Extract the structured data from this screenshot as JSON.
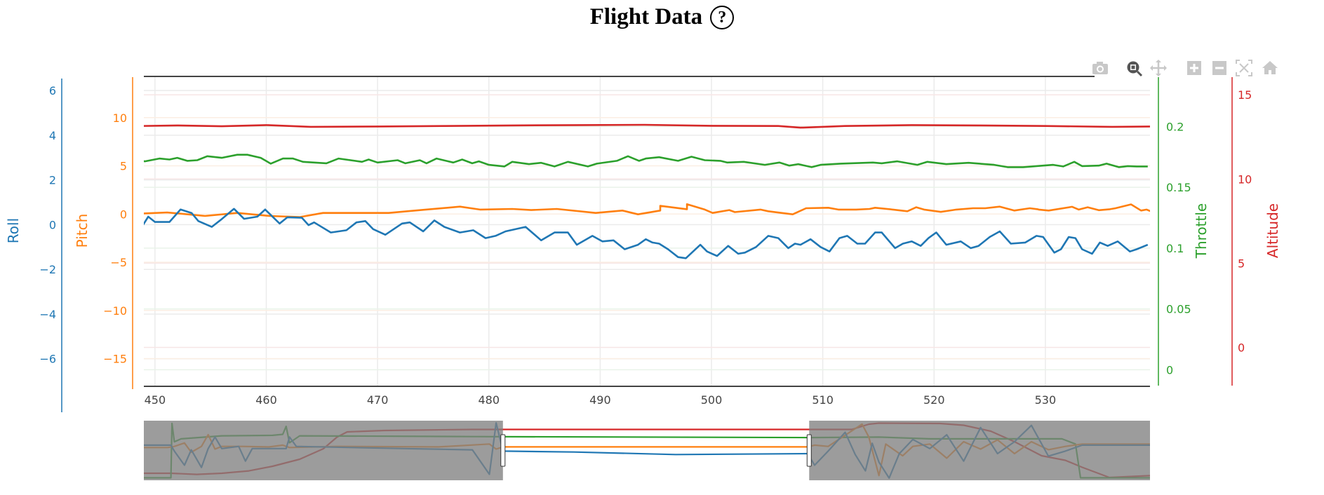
{
  "header": {
    "title": "Flight Data",
    "help_icon": "?"
  },
  "modebar": {
    "icons": [
      "camera-icon",
      "zoom-icon",
      "pan-icon",
      "zoom-in-icon",
      "zoom-out-icon",
      "autoscale-icon",
      "home-icon"
    ],
    "active": "zoom-icon"
  },
  "chart_data": {
    "type": "line",
    "title": "Flight Data",
    "grid": true,
    "xaxis": {
      "range": [
        449.0,
        539.4
      ],
      "ticks": [
        450,
        460,
        470,
        480,
        490,
        500,
        510,
        520,
        530
      ],
      "label": ""
    },
    "yaxes": {
      "roll": {
        "label": "Roll",
        "color": "#1f77b4",
        "range": [
          -7.2,
          6.6
        ],
        "ticks": [
          6,
          4,
          2,
          0,
          -2,
          -4,
          -6
        ],
        "tick_labels": [
          "6",
          "4",
          "2",
          "0",
          "−2",
          "−4",
          "−6"
        ]
      },
      "pitch": {
        "label": "Pitch",
        "color": "#ff7f0e",
        "range": [
          -17.8,
          14.2
        ],
        "ticks": [
          10,
          5,
          0,
          -5,
          -10,
          -15
        ],
        "tick_labels": [
          "10",
          "5",
          "0",
          "−5",
          "−10",
          "−15"
        ]
      },
      "throttle": {
        "label": "Throttle",
        "color": "#2ca02c",
        "range": [
          -0.013,
          0.2405
        ],
        "ticks": [
          0.2,
          0.15,
          0.1,
          0.05,
          0
        ],
        "tick_labels": [
          "0.2",
          "0.15",
          "0.1",
          "0.05",
          "0"
        ]
      },
      "altitude": {
        "label": "Altitude",
        "color": "#d62728",
        "range": [
          -2.27,
          16.05
        ],
        "ticks": [
          15,
          10,
          5,
          0
        ],
        "tick_labels": [
          "15",
          "10",
          "5",
          "0"
        ]
      }
    },
    "series": [
      {
        "name": "Roll",
        "axis": "roll",
        "color": "#1f77b4",
        "x": [
          448.7,
          449.4,
          450.0,
          451.3,
          452.3,
          453.3,
          453.9,
          455.1,
          455.9,
          457.1,
          458.0,
          459.2,
          459.9,
          461.2,
          461.9,
          463.2,
          463.8,
          464.3,
          465.8,
          467.2,
          468.1,
          468.9,
          469.6,
          470.7,
          472.2,
          472.9,
          474.1,
          475.1,
          476.0,
          477.4,
          478.6,
          479.7,
          480.6,
          481.5,
          483.3,
          484.7,
          485.9,
          487.1,
          487.9,
          489.3,
          490.2,
          491.2,
          492.2,
          493.4,
          494.1,
          494.7,
          495.3,
          496.1,
          497.0,
          497.7,
          499.0,
          499.6,
          500.5,
          501.5,
          502.4,
          503.0,
          504.0,
          505.1,
          506.0,
          506.9,
          507.5,
          508.0,
          508.9,
          509.8,
          510.6,
          511.5,
          512.2,
          513.1,
          513.8,
          514.7,
          515.3,
          516.5,
          517.2,
          518.0,
          518.8,
          519.5,
          520.2,
          521.1,
          522.4,
          523.3,
          524.0,
          525.0,
          525.9,
          526.9,
          528.2,
          529.2,
          529.8,
          530.8,
          531.4,
          532.1,
          532.7,
          533.3,
          534.2,
          534.9,
          535.6,
          536.5,
          537.6,
          538.2,
          539.2
        ],
        "y": [
          -0.2,
          0.36,
          0.12,
          0.12,
          0.68,
          0.52,
          0.16,
          -0.1,
          0.21,
          0.71,
          0.26,
          0.36,
          0.68,
          0.05,
          0.33,
          0.31,
          -0.02,
          0.1,
          -0.35,
          -0.25,
          0.1,
          0.16,
          -0.2,
          -0.45,
          0.05,
          0.1,
          -0.3,
          0.19,
          -0.1,
          -0.35,
          -0.25,
          -0.6,
          -0.5,
          -0.3,
          -0.1,
          -0.7,
          -0.35,
          -0.35,
          -0.9,
          -0.5,
          -0.75,
          -0.7,
          -1.1,
          -0.9,
          -0.65,
          -0.8,
          -0.85,
          -1.1,
          -1.45,
          -1.5,
          -0.9,
          -1.2,
          -1.4,
          -0.95,
          -1.3,
          -1.25,
          -1.0,
          -0.5,
          -0.6,
          -1.05,
          -0.85,
          -0.9,
          -0.65,
          -1.0,
          -1.2,
          -0.6,
          -0.5,
          -0.85,
          -0.85,
          -0.35,
          -0.35,
          -1.05,
          -0.85,
          -0.75,
          -0.95,
          -0.6,
          -0.35,
          -0.9,
          -0.75,
          -1.05,
          -0.95,
          -0.55,
          -0.3,
          -0.85,
          -0.8,
          -0.5,
          -0.55,
          -1.25,
          -1.1,
          -0.55,
          -0.6,
          -1.1,
          -1.3,
          -0.8,
          -0.95,
          -0.75,
          -1.2,
          -1.1,
          -0.9
        ]
      },
      {
        "name": "Pitch",
        "axis": "pitch",
        "color": "#ff7f0e",
        "x": [
          448.7,
          451.1,
          454.5,
          457.4,
          460.3,
          463.0,
          465.1,
          471.0,
          473.9,
          477.4,
          479.2,
          482.1,
          483.8,
          486.1,
          489.6,
          492.0,
          493.4,
          495.4,
          497.8,
          500.1,
          502.1,
          504.4,
          508.5,
          514.2,
          516.3,
          518.4,
          521.7,
          524.6,
          529.3,
          532.4,
          534.8,
          537.7,
          539.1,
          541.0
        ],
        "y": [
          0.04,
          0.16,
          -0.2,
          0.11,
          -0.2,
          -0.32,
          0.11,
          0.11,
          0.41,
          0.77,
          0.46,
          0.53,
          0.41,
          0.53,
          0.11,
          0.36,
          -0.03,
          0.36,
          0.5,
          0.11,
          0.2,
          0.46,
          0.6,
          0.53,
          0.46,
          0.7,
          0.41,
          0.6,
          0.5,
          0.75,
          0.4,
          1.0,
          0.46,
          0.58
        ],
        "x2": [
          495.4,
          497.8,
          499.4,
          501.6,
          505.1,
          507.3,
          510.5,
          511.4,
          513.0,
          514.7,
          517.6,
          519.1,
          520.6,
          522.0,
          523.5,
          525.9,
          527.2,
          528.6,
          529.4,
          530.3,
          533.0,
          533.8,
          535.8,
          536.3,
          538.6,
          539.4
        ],
        "y2": [
          0.85,
          1.02,
          0.46,
          0.41,
          0.29,
          -0.03,
          0.65,
          0.46,
          0.46,
          0.65,
          0.29,
          0.46,
          0.22,
          0.46,
          0.6,
          0.77,
          0.36,
          0.6,
          0.46,
          0.36,
          0.46,
          0.7,
          0.5,
          0.6,
          0.36,
          0.32
        ]
      },
      {
        "name": "Throttle",
        "axis": "throttle",
        "color": "#2ca02c",
        "x": [
          448.7,
          449.1,
          450.4,
          451.3,
          452.0,
          452.9,
          453.8,
          454.7,
          456.0,
          457.4,
          458.3,
          459.5,
          460.4,
          461.5,
          462.4,
          463.3,
          465.4,
          466.5,
          468.6,
          469.2,
          470.0,
          471.8,
          472.5,
          473.8,
          474.4,
          475.3,
          476.8,
          477.6,
          478.5,
          479.1,
          480.0,
          481.4,
          482.1,
          483.6,
          484.7,
          485.9,
          487.1,
          488.9,
          489.7,
          491.5,
          492.5,
          493.5,
          494.1,
          495.3,
          497.0,
          498.2,
          499.4,
          500.8,
          501.4,
          502.9,
          504.8,
          506.1,
          507.0,
          507.8,
          509.0,
          509.8,
          511.6,
          514.5,
          515.3,
          516.7,
          518.5,
          519.4,
          521.1,
          523.1,
          525.4,
          526.6,
          528.0,
          530.7,
          531.6,
          532.6,
          533.3,
          534.8,
          535.5,
          536.6,
          537.4,
          538.2,
          539.2
        ],
        "y": [
          0.1717,
          0.1713,
          0.1736,
          0.1728,
          0.1742,
          0.1717,
          0.1722,
          0.1755,
          0.1742,
          0.1767,
          0.1767,
          0.1742,
          0.1694,
          0.1736,
          0.1736,
          0.1709,
          0.1697,
          0.1736,
          0.1709,
          0.1728,
          0.1703,
          0.1722,
          0.1697,
          0.1722,
          0.1697,
          0.1736,
          0.1703,
          0.1728,
          0.1697,
          0.1713,
          0.1684,
          0.1671,
          0.1709,
          0.169,
          0.1701,
          0.1671,
          0.1709,
          0.1671,
          0.1694,
          0.1717,
          0.1755,
          0.1717,
          0.1736,
          0.1747,
          0.1717,
          0.1751,
          0.1722,
          0.1717,
          0.1703,
          0.1709,
          0.1684,
          0.1703,
          0.1678,
          0.169,
          0.1665,
          0.1684,
          0.1694,
          0.1703,
          0.1697,
          0.1713,
          0.1684,
          0.1709,
          0.169,
          0.1701,
          0.1684,
          0.1665,
          0.1665,
          0.1684,
          0.1671,
          0.1709,
          0.1674,
          0.1678,
          0.1694,
          0.1665,
          0.1674,
          0.1671,
          0.1671
        ]
      },
      {
        "name": "Altitude",
        "axis": "altitude",
        "color": "#d62728",
        "x": [
          448.7,
          452,
          456,
          460,
          464,
          470,
          476,
          482,
          488,
          494,
          500,
          506,
          508,
          512,
          518,
          524,
          530,
          536,
          539.4
        ],
        "y": [
          13.15,
          13.18,
          13.13,
          13.2,
          13.1,
          13.12,
          13.15,
          13.18,
          13.2,
          13.22,
          13.16,
          13.15,
          13.05,
          13.15,
          13.2,
          13.18,
          13.15,
          13.1,
          13.12
        ]
      }
    ],
    "rangeslider": {
      "range": [
        343,
        640
      ],
      "selected": [
        449.0,
        539.4
      ],
      "yranges": {
        "roll": [
          -10,
          9
        ],
        "pitch": [
          -20,
          18
        ],
        "throttle": [
          -0.01,
          0.23
        ],
        "altitude": [
          -1,
          16
        ]
      },
      "series": [
        {
          "name": "Roll",
          "axis": "roll",
          "color": "#1f77b4",
          "x": [
            343,
            351,
            352,
            355,
            357,
            360,
            362,
            364,
            366,
            371,
            373,
            375,
            385,
            386,
            388,
            420,
            440,
            445,
            447,
            449,
            470,
            500,
            539,
            541,
            545,
            550,
            553,
            556,
            558,
            560,
            563,
            566,
            570,
            575,
            580,
            585,
            590,
            595,
            600,
            605,
            610,
            615,
            620,
            640
          ],
          "y": [
            1.2,
            1.2,
            -0.7,
            -5.2,
            -0.3,
            -5.9,
            0.1,
            3.8,
            0.1,
            0.8,
            -3.9,
            0.1,
            0.1,
            3.8,
            0.8,
            0.1,
            -0.3,
            -8.1,
            8.3,
            -0.7,
            -1.0,
            -1.8,
            -1.5,
            -5.2,
            -0.7,
            5.3,
            -1.8,
            -7.0,
            1.8,
            -4.2,
            -9.3,
            -1.5,
            3.0,
            0.1,
            4.5,
            -3.9,
            6.8,
            -1.5,
            2.3,
            7.5,
            -2.3,
            -0.7,
            1.2,
            1.2
          ]
        },
        {
          "name": "Pitch",
          "axis": "pitch",
          "color": "#ff7f0e",
          "x": [
            343,
            350,
            352,
            355,
            357,
            360,
            362,
            364,
            366,
            372,
            380,
            384,
            386,
            400,
            430,
            445,
            447,
            449,
            539,
            541,
            545,
            555,
            557,
            560,
            562,
            567,
            570,
            575,
            580,
            585,
            590,
            595,
            600,
            605,
            610,
            615,
            620,
            640
          ],
          "y": [
            0.86,
            0.86,
            1.6,
            3.8,
            -2.1,
            1.6,
            9.1,
            -0.1,
            1.6,
            1.6,
            1.3,
            2.4,
            0.9,
            1.6,
            1.3,
            3.1,
            -0.1,
            1.3,
            1.3,
            2.4,
            1.6,
            15.8,
            7.6,
            -17,
            3.1,
            -4.4,
            1.6,
            3.1,
            -5.9,
            4.6,
            -0.1,
            5.8,
            -3.0,
            4.6,
            -0.5,
            1.6,
            3.1,
            3.1
          ]
        },
        {
          "name": "Throttle",
          "axis": "throttle",
          "color": "#2ca02c",
          "x": [
            343,
            351,
            351.3,
            352,
            354,
            366,
            381,
            384,
            385,
            386,
            389,
            440,
            539,
            560,
            575,
            600,
            614,
            618,
            619.5,
            640
          ],
          "y": [
            0.0,
            0.0,
            0.219,
            0.145,
            0.157,
            0.169,
            0.171,
            0.175,
            0.207,
            0.141,
            0.169,
            0.166,
            0.162,
            0.164,
            0.157,
            0.157,
            0.157,
            0.136,
            0.0,
            0.0
          ]
        },
        {
          "name": "Altitude",
          "axis": "altitude",
          "color": "#d62728",
          "x": [
            343,
            351,
            358.6,
            366,
            374,
            381,
            389,
            396,
            400,
            403,
            414,
            440,
            539,
            552,
            557,
            560,
            578,
            585,
            593,
            600,
            608,
            615,
            620,
            628,
            640
          ],
          "y": [
            1.0,
            1.0,
            0.67,
            1.0,
            1.67,
            3.0,
            5.0,
            8.0,
            11.3,
            12.8,
            13.2,
            13.5,
            13.5,
            13.5,
            15.0,
            15.3,
            15.2,
            14.7,
            13.0,
            10.0,
            6.0,
            4.7,
            2.7,
            -0.2,
            0.33
          ]
        }
      ]
    }
  }
}
